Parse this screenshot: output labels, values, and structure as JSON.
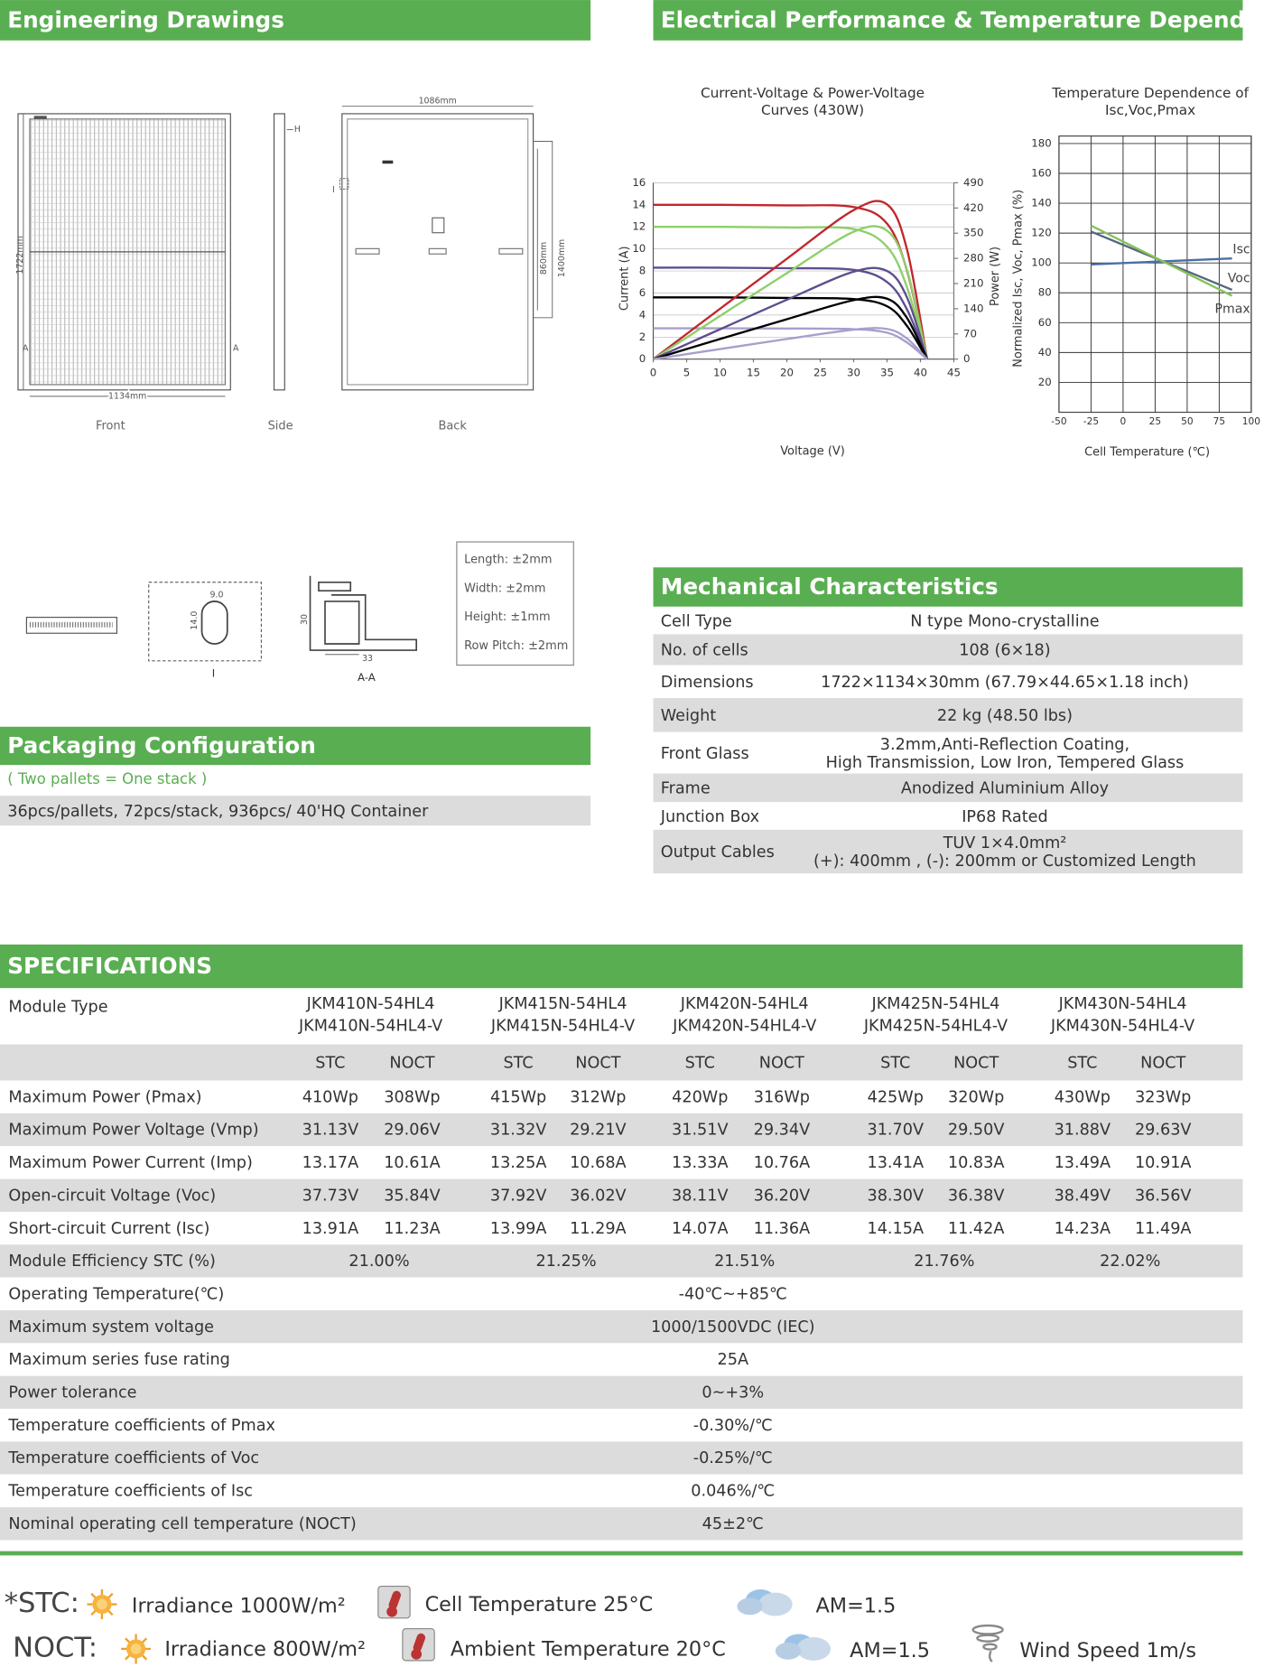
{
  "drawings": {
    "title": "Engineering Drawings",
    "front": "Front",
    "side": "Side",
    "back": "Back",
    "dim_length": "1722mm",
    "dim_width": "1134mm",
    "dim_back_width": "1086mm",
    "dim_860": "860mm",
    "dim_1400": "1400mm",
    "h": "H",
    "a": "A",
    "i": "I",
    "section": "A-A",
    "dim_33": "33",
    "dim_30": "30",
    "dim_9": "9.0",
    "dim_14": "14.0",
    "tolerances": [
      "Length: ±2mm",
      "Width: ±2mm",
      "Height: ±1mm",
      "Row Pitch: ±2mm"
    ]
  },
  "electrical": {
    "title": "Electrical Performance & Temperature Dependence"
  },
  "chart_data": [
    {
      "type": "line",
      "title_lines": [
        "Current-Voltage & Power-Voltage",
        "Curves (430W)"
      ],
      "x_label": "Voltage (V)",
      "y_label": "Current (A)",
      "y2_label": "Power (W)",
      "x": [
        0,
        10,
        20,
        30,
        35,
        38,
        41
      ],
      "xlim": [
        0,
        45
      ],
      "xticks": [
        0,
        5,
        10,
        15,
        20,
        25,
        30,
        35,
        40,
        45
      ],
      "ylim": [
        0,
        16
      ],
      "yticks": [
        0,
        2,
        4,
        6,
        8,
        10,
        12,
        14,
        16
      ],
      "y2lim": [
        0,
        490
      ],
      "y2ticks": [
        0,
        70,
        140,
        210,
        280,
        350,
        420,
        490
      ],
      "grid": true,
      "series": [
        {
          "color": "#c1272d",
          "values": [
            14,
            14,
            13.95,
            13.8,
            12.3,
            8,
            0
          ]
        },
        {
          "color": "#8fcf6a",
          "values": [
            12,
            12,
            11.95,
            11.8,
            10.2,
            6.5,
            0
          ]
        },
        {
          "color": "#5e4d8e",
          "values": [
            8.3,
            8.3,
            8.25,
            8.1,
            7,
            4.5,
            0
          ]
        },
        {
          "color": "#000000",
          "values": [
            5.6,
            5.6,
            5.55,
            5.45,
            4.8,
            3,
            0
          ]
        },
        {
          "color": "#a89fcc",
          "values": [
            2.8,
            2.8,
            2.78,
            2.72,
            2.4,
            1.5,
            0
          ]
        },
        {
          "color": "#c1272d",
          "axis": "y2",
          "values": [
            0,
            140,
            279,
            414,
            430,
            304,
            0
          ]
        },
        {
          "color": "#8fcf6a",
          "axis": "y2",
          "values": [
            0,
            120,
            239,
            354,
            357,
            247,
            0
          ]
        },
        {
          "color": "#5e4d8e",
          "axis": "y2",
          "values": [
            0,
            83,
            165,
            243,
            245,
            171,
            0
          ]
        },
        {
          "color": "#000000",
          "axis": "y2",
          "values": [
            0,
            56,
            111,
            164,
            168,
            114,
            0
          ]
        },
        {
          "color": "#a89fcc",
          "axis": "y2",
          "values": [
            0,
            28,
            56,
            82,
            84,
            57,
            0
          ]
        }
      ]
    },
    {
      "type": "line",
      "title_lines": [
        "Temperature Dependence of",
        "Isc,Voc,Pmax"
      ],
      "x_label": "Cell Temperature (℃)",
      "y_label": "Normalized Isc, Voc, Pmax (%)",
      "x": [
        -25,
        85
      ],
      "xlim": [
        -50,
        100
      ],
      "xticks": [
        -50,
        -25,
        0,
        25,
        50,
        75,
        100
      ],
      "ylim": [
        0,
        185
      ],
      "yticks": [
        20,
        40,
        60,
        80,
        100,
        120,
        140,
        160,
        180
      ],
      "grid": true,
      "series": [
        {
          "name": "Isc",
          "color": "#4a6fa5",
          "values": [
            99,
            103
          ]
        },
        {
          "name": "Voc",
          "color": "#56677f",
          "values": [
            121,
            82
          ]
        },
        {
          "name": "Pmax",
          "color": "#86c25a",
          "values": [
            125,
            78
          ]
        }
      ]
    }
  ],
  "mechanical": {
    "title": "Mechanical Characteristics",
    "rows": [
      {
        "label": "Cell  Type",
        "value": [
          "N type Mono-crystalline"
        ]
      },
      {
        "label": "No. of cells",
        "value": [
          "108 (6×18)"
        ]
      },
      {
        "label": "Dimensions",
        "value": [
          "1722×1134×30mm (67.79×44.65×1.18 inch)"
        ]
      },
      {
        "label": "Weight",
        "value": [
          "22 kg (48.50 lbs)"
        ]
      },
      {
        "label": "Front Glass",
        "value": [
          "3.2mm,Anti-Reflection Coating,",
          "High Transmission, Low Iron, Tempered Glass"
        ]
      },
      {
        "label": "Frame",
        "value": [
          "Anodized Aluminium Alloy"
        ]
      },
      {
        "label": "Junction Box",
        "value": [
          "IP68 Rated"
        ]
      },
      {
        "label": "Output Cables",
        "value": [
          "TUV  1×4.0mm²",
          "(+): 400mm , (-): 200mm or Customized Length"
        ]
      }
    ]
  },
  "packaging": {
    "title": "Packaging Configuration",
    "note": "( Two pallets = One stack )",
    "detail": "36pcs/pallets, 72pcs/stack, 936pcs/ 40'HQ Container"
  },
  "specs": {
    "title": "SPECIFICATIONS",
    "module_type_label": "Module Type",
    "models": [
      [
        "JKM410N-54HL4",
        "JKM410N-54HL4-V"
      ],
      [
        "JKM415N-54HL4",
        "JKM415N-54HL4-V"
      ],
      [
        "JKM420N-54HL4",
        "JKM420N-54HL4-V"
      ],
      [
        "JKM425N-54HL4",
        "JKM425N-54HL4-V"
      ],
      [
        "JKM430N-54HL4",
        "JKM430N-54HL4-V"
      ]
    ],
    "conditions": [
      "STC",
      "NOCT"
    ],
    "pair_rows": [
      {
        "label": "Maximum Power (Pmax)",
        "values": [
          "410Wp",
          "308Wp",
          "415Wp",
          "312Wp",
          "420Wp",
          "316Wp",
          "425Wp",
          "320Wp",
          "430Wp",
          "323Wp"
        ]
      },
      {
        "label": "Maximum Power Voltage (Vmp)",
        "values": [
          "31.13V",
          "29.06V",
          "31.32V",
          "29.21V",
          "31.51V",
          "29.34V",
          "31.70V",
          "29.50V",
          "31.88V",
          "29.63V"
        ]
      },
      {
        "label": "Maximum Power Current (Imp)",
        "values": [
          "13.17A",
          "10.61A",
          "13.25A",
          "10.68A",
          "13.33A",
          "10.76A",
          "13.41A",
          "10.83A",
          "13.49A",
          "10.91A"
        ]
      },
      {
        "label": "Open-circuit Voltage (Voc)",
        "values": [
          "37.73V",
          "35.84V",
          "37.92V",
          "36.02V",
          "38.11V",
          "36.20V",
          "38.30V",
          "36.38V",
          "38.49V",
          "36.56V"
        ]
      },
      {
        "label": "Short-circuit Current (Isc)",
        "values": [
          "13.91A",
          "11.23A",
          "13.99A",
          "11.29A",
          "14.07A",
          "11.36A",
          "14.15A",
          "11.42A",
          "14.23A",
          "11.49A"
        ]
      }
    ],
    "efficiency_row": {
      "label": "Module Efficiency STC (%)",
      "values": [
        "21.00%",
        "21.25%",
        "21.51%",
        "21.76%",
        "22.02%"
      ]
    },
    "common_rows": [
      {
        "label": "Operating Temperature(℃)",
        "value": "-40℃~+85℃"
      },
      {
        "label": "Maximum system voltage",
        "value": "1000/1500VDC (IEC)"
      },
      {
        "label": "Maximum series fuse rating",
        "value": "25A"
      },
      {
        "label": "Power tolerance",
        "value": "0~+3%"
      },
      {
        "label": "Temperature coefficients of Pmax",
        "value": "-0.30%/℃"
      },
      {
        "label": "Temperature coefficients of Voc",
        "value": "-0.25%/℃"
      },
      {
        "label": "Temperature coefficients of Isc",
        "value": "0.046%/℃"
      },
      {
        "label": "Nominal operating cell temperature  (NOCT)",
        "value": "45±2℃"
      }
    ]
  },
  "footer": {
    "stc": {
      "label": "*STC:",
      "irradiance": "Irradiance 1000W/m²",
      "temperature": "Cell Temperature 25°C",
      "am": "AM=1.5"
    },
    "noct": {
      "label": "NOCT:",
      "irradiance": "Irradiance 800W/m²",
      "temperature": "Ambient Temperature 20°C",
      "am": "AM=1.5",
      "wind": "Wind Speed 1m/s"
    }
  }
}
